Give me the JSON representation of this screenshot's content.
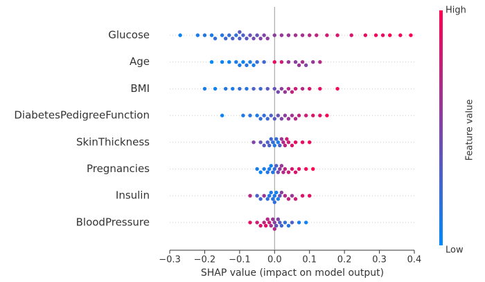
{
  "chart_data": {
    "type": "beeswarm",
    "x_label": "SHAP value (impact on model output)",
    "colorbar_label": "Feature value",
    "colorbar_high": "High",
    "colorbar_low": "Low",
    "colormap": [
      "#008afb",
      "#ff0052"
    ],
    "xlim": [
      -0.3,
      0.4
    ],
    "xticks": [
      {
        "value": -0.3,
        "label": "−0.3"
      },
      {
        "value": -0.2,
        "label": "−0.2"
      },
      {
        "value": -0.1,
        "label": "−0.1"
      },
      {
        "value": 0,
        "label": "0.0"
      },
      0.1,
      0.2,
      0.3,
      0.4
    ],
    "features": [
      {
        "name": "Glucose",
        "shap": [
          -0.27,
          -0.22,
          -0.2,
          -0.18,
          -0.17,
          -0.15,
          -0.14,
          -0.13,
          -0.12,
          -0.11,
          -0.1,
          -0.1,
          -0.09,
          -0.08,
          -0.07,
          -0.06,
          -0.05,
          -0.04,
          -0.03,
          -0.02,
          0.0,
          0.02,
          0.04,
          0.06,
          0.08,
          0.1,
          0.12,
          0.15,
          0.18,
          0.22,
          0.26,
          0.29,
          0.31,
          0.33,
          0.36,
          0.39
        ],
        "feature_value": [
          0.05,
          0.1,
          0.15,
          0.1,
          0.2,
          0.15,
          0.25,
          0.2,
          0.3,
          0.2,
          0.3,
          0.35,
          0.3,
          0.35,
          0.4,
          0.45,
          0.4,
          0.5,
          0.5,
          0.55,
          0.55,
          0.6,
          0.6,
          0.65,
          0.65,
          0.7,
          0.75,
          0.8,
          0.85,
          0.85,
          0.9,
          0.95,
          0.9,
          1,
          0.95,
          1
        ]
      },
      {
        "name": "Age",
        "shap": [
          -0.18,
          -0.15,
          -0.13,
          -0.11,
          -0.1,
          -0.09,
          -0.08,
          -0.07,
          -0.06,
          -0.05,
          -0.03,
          0.0,
          0.02,
          0.04,
          0.06,
          0.07,
          0.08,
          0.09,
          0.11,
          0.13
        ],
        "feature_value": [
          0,
          0.05,
          0.05,
          0.1,
          0.1,
          0.05,
          0.15,
          0.1,
          0.1,
          0.2,
          0.25,
          0.9,
          0.8,
          0.6,
          0.55,
          0.6,
          0.65,
          0.5,
          0.6,
          0.7
        ]
      },
      {
        "name": "BMI",
        "shap": [
          -0.2,
          -0.17,
          -0.14,
          -0.12,
          -0.1,
          -0.08,
          -0.06,
          -0.04,
          -0.02,
          0.0,
          0.01,
          0.02,
          0.03,
          0.04,
          0.05,
          0.06,
          0.08,
          0.1,
          0.13,
          0.18
        ],
        "feature_value": [
          0.1,
          0.05,
          0.15,
          0.1,
          0.2,
          0.15,
          0.3,
          0.25,
          0.35,
          0.4,
          0.45,
          0.55,
          0.6,
          0.7,
          0.75,
          0.8,
          0.7,
          0.85,
          0.9,
          0.95
        ]
      },
      {
        "name": "DiabetesPedigreeFunction",
        "shap": [
          -0.15,
          -0.09,
          -0.07,
          -0.05,
          -0.04,
          -0.03,
          -0.02,
          -0.01,
          0.0,
          0.01,
          0.02,
          0.03,
          0.04,
          0.05,
          0.06,
          0.07,
          0.09,
          0.11,
          0.13,
          0.15
        ],
        "feature_value": [
          0.05,
          0.1,
          0.15,
          0.1,
          0.2,
          0.2,
          0.25,
          0.3,
          0.35,
          0.4,
          0.5,
          0.55,
          0.6,
          0.65,
          0.7,
          0.75,
          0.8,
          0.85,
          0.9,
          0.95
        ]
      },
      {
        "name": "SkinThickness",
        "shap": [
          -0.06,
          -0.04,
          -0.03,
          -0.02,
          -0.015,
          -0.01,
          -0.005,
          0.0,
          0.005,
          0.01,
          0.015,
          0.02,
          0.025,
          0.03,
          0.035,
          0.04,
          0.05,
          0.06,
          0.08,
          0.1
        ],
        "feature_value": [
          0.5,
          0.4,
          0.35,
          0.3,
          0.3,
          0.25,
          0.2,
          0.15,
          0.2,
          0.1,
          0.3,
          0.6,
          0.7,
          0.75,
          0.8,
          0.8,
          0.85,
          0.9,
          0.9,
          0.95
        ]
      },
      {
        "name": "Pregnancies",
        "shap": [
          -0.05,
          -0.04,
          -0.03,
          -0.02,
          -0.015,
          -0.01,
          -0.005,
          0.0,
          0.005,
          0.01,
          0.015,
          0.02,
          0.025,
          0.03,
          0.04,
          0.05,
          0.06,
          0.07,
          0.09,
          0.11
        ],
        "feature_value": [
          0.1,
          0.05,
          0.1,
          0.15,
          0.1,
          0.05,
          0.15,
          0.2,
          0.3,
          0.45,
          0.55,
          0.6,
          0.7,
          0.75,
          0.8,
          0.85,
          0.85,
          0.9,
          0.95,
          1
        ]
      },
      {
        "name": "Insulin",
        "shap": [
          -0.07,
          -0.05,
          -0.04,
          -0.03,
          -0.02,
          -0.015,
          -0.01,
          -0.005,
          0.0,
          0.0,
          0.005,
          0.01,
          0.015,
          0.02,
          0.03,
          0.04,
          0.05,
          0.06,
          0.08,
          0.1
        ],
        "feature_value": [
          0.7,
          0.3,
          0.25,
          0.6,
          0.2,
          0.15,
          0.1,
          0.15,
          0.1,
          0.2,
          0.05,
          0.1,
          0.4,
          0.55,
          0.7,
          0.75,
          0.6,
          0.8,
          0.85,
          0.9
        ]
      },
      {
        "name": "BloodPressure",
        "shap": [
          -0.07,
          -0.05,
          -0.04,
          -0.03,
          -0.025,
          -0.02,
          -0.015,
          -0.01,
          -0.005,
          0.0,
          0.0,
          0.005,
          0.01,
          0.015,
          0.02,
          0.03,
          0.04,
          0.05,
          0.07,
          0.09
        ],
        "feature_value": [
          0.9,
          0.8,
          0.85,
          0.75,
          0.9,
          0.7,
          0.8,
          0.65,
          0.6,
          0.55,
          0.7,
          0.4,
          0.5,
          0.3,
          0.25,
          0.2,
          0.15,
          0.3,
          0.1,
          0.05
        ]
      }
    ]
  }
}
